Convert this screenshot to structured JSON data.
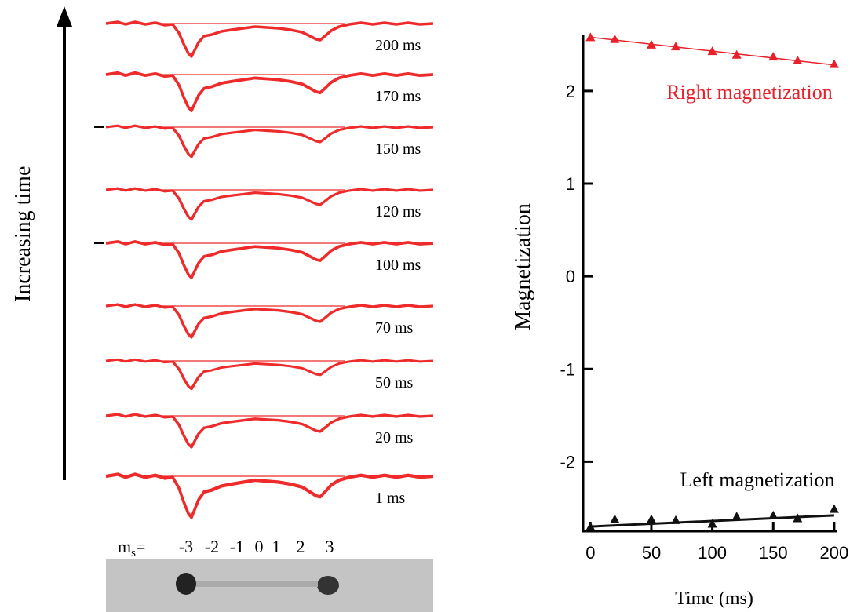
{
  "spectra": {
    "axis_label": "Increasing time",
    "trace_labels": [
      "200 ms",
      "170 ms",
      "150 ms",
      "120 ms",
      "100 ms",
      "70 ms",
      "50 ms",
      "20 ms",
      "1 ms"
    ],
    "ms_symbol": "m",
    "ms_subscript": "s",
    "ms_suffix": "=",
    "ms_values": [
      "-3",
      "-2",
      "-1",
      "0",
      "1",
      "2",
      "3"
    ]
  },
  "chart_data": {
    "type": "scatter",
    "xlabel": "Time (ms)",
    "ylabel": "Magnetization",
    "xlim": [
      -6,
      202
    ],
    "ylim": [
      -2.75,
      2.6
    ],
    "xticks": [
      0,
      50,
      100,
      150,
      200
    ],
    "yticks": [
      -2,
      -1,
      0,
      1,
      2
    ],
    "series": [
      {
        "name": "Right magnetization",
        "color": "#e8202a",
        "x": [
          0,
          20,
          50,
          70,
          100,
          120,
          150,
          170,
          200
        ],
        "values": [
          2.58,
          2.56,
          2.5,
          2.48,
          2.43,
          2.39,
          2.37,
          2.33,
          2.29
        ],
        "fit": {
          "x": [
            0,
            200
          ],
          "values": [
            2.58,
            2.28
          ]
        }
      },
      {
        "name": "Left magnetization",
        "color": "#111111",
        "x": [
          0,
          20,
          50,
          70,
          100,
          120,
          150,
          170,
          200
        ],
        "values": [
          -2.7,
          -2.62,
          -2.62,
          -2.63,
          -2.67,
          -2.59,
          -2.58,
          -2.61,
          -2.51
        ],
        "fit": {
          "x": [
            0,
            200
          ],
          "values": [
            -2.7,
            -2.58
          ]
        }
      }
    ]
  }
}
